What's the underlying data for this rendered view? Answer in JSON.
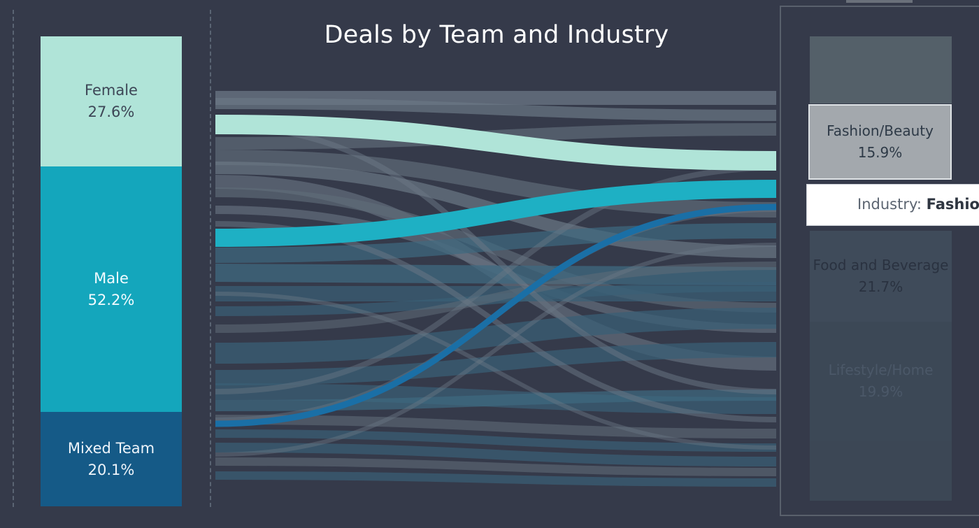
{
  "title": "Deals by Team and Industry",
  "chart_data": {
    "type": "sankey",
    "title": "Deals by Team and Industry",
    "source_nodes": [
      {
        "label": "Female",
        "share": "27.6%",
        "color": "#b0e4d8"
      },
      {
        "label": "Male",
        "share": "52.2%",
        "color": "#14a6bc"
      },
      {
        "label": "Mixed Team",
        "share": "20.1%",
        "color": "#155a87"
      }
    ],
    "target_nodes": [
      {
        "label": "Fashion/Beauty",
        "share": "15.9%",
        "highlighted": true
      },
      {
        "label": "Food and Beverage",
        "share": "21.7%",
        "highlighted": false
      },
      {
        "label": "Lifestyle/Home",
        "share": "19.9%",
        "highlighted": false
      }
    ],
    "highlighted_flows": [
      {
        "from": "Female",
        "to": "Fashion/Beauty",
        "color": "#b0e4d8"
      },
      {
        "from": "Male",
        "to": "Fashion/Beauty",
        "color": "#1eb0c4"
      },
      {
        "from": "Mixed Team",
        "to": "Fashion/Beauty",
        "color": "#1a6fa6"
      }
    ]
  },
  "tooltip": {
    "label": "Industry:",
    "value": "Fashio"
  }
}
